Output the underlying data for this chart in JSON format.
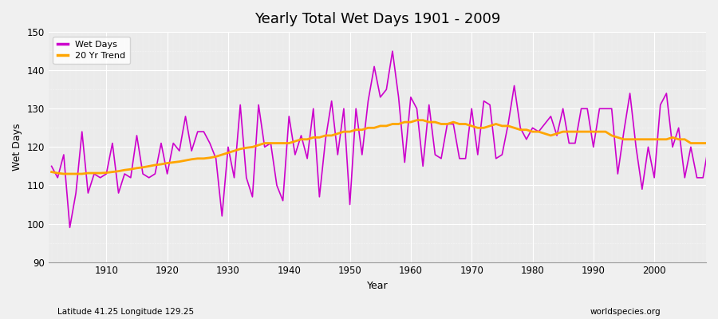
{
  "title": "Yearly Total Wet Days 1901 - 2009",
  "xlabel": "Year",
  "ylabel": "Wet Days",
  "lat_lon_label": "Latitude 41.25 Longitude 129.25",
  "source_label": "worldspecies.org",
  "ylim": [
    90,
    150
  ],
  "yticks": [
    90,
    100,
    110,
    120,
    130,
    140,
    150
  ],
  "bg_color": "#f0f0f0",
  "plot_bg_color": "#ebebeb",
  "line_color": "#cc00cc",
  "trend_color": "#ffa500",
  "years": [
    1901,
    1902,
    1903,
    1904,
    1905,
    1906,
    1907,
    1908,
    1909,
    1910,
    1911,
    1912,
    1913,
    1914,
    1915,
    1916,
    1917,
    1918,
    1919,
    1920,
    1921,
    1922,
    1923,
    1924,
    1925,
    1926,
    1927,
    1928,
    1929,
    1930,
    1931,
    1932,
    1933,
    1934,
    1935,
    1936,
    1937,
    1938,
    1939,
    1940,
    1941,
    1942,
    1943,
    1944,
    1945,
    1946,
    1947,
    1948,
    1949,
    1950,
    1951,
    1952,
    1953,
    1954,
    1955,
    1956,
    1957,
    1958,
    1959,
    1960,
    1961,
    1962,
    1963,
    1964,
    1965,
    1966,
    1967,
    1968,
    1969,
    1970,
    1971,
    1972,
    1973,
    1974,
    1975,
    1976,
    1977,
    1978,
    1979,
    1980,
    1981,
    1982,
    1983,
    1984,
    1985,
    1986,
    1987,
    1988,
    1989,
    1990,
    1991,
    1992,
    1993,
    1994,
    1995,
    1996,
    1997,
    1998,
    1999,
    2000,
    2001,
    2002,
    2003,
    2004,
    2005,
    2006,
    2007,
    2008,
    2009
  ],
  "wet_days": [
    115,
    112,
    118,
    99,
    108,
    124,
    108,
    113,
    112,
    113,
    121,
    108,
    113,
    112,
    123,
    113,
    112,
    113,
    121,
    113,
    121,
    119,
    128,
    119,
    124,
    124,
    121,
    117,
    102,
    120,
    112,
    131,
    112,
    107,
    131,
    120,
    121,
    110,
    106,
    128,
    118,
    123,
    117,
    130,
    107,
    122,
    132,
    118,
    130,
    105,
    130,
    118,
    132,
    141,
    133,
    135,
    145,
    133,
    116,
    133,
    130,
    115,
    131,
    118,
    117,
    126,
    126,
    117,
    117,
    130,
    118,
    132,
    131,
    117,
    118,
    126,
    136,
    125,
    122,
    125,
    124,
    126,
    128,
    123,
    130,
    121,
    121,
    130,
    130,
    120,
    130,
    130,
    130,
    113,
    124,
    134,
    120,
    109,
    120,
    112,
    131,
    134,
    120,
    125,
    112,
    120,
    112,
    112,
    121
  ],
  "trend_years": [
    1901,
    1902,
    1903,
    1904,
    1905,
    1906,
    1907,
    1908,
    1909,
    1910,
    1911,
    1912,
    1913,
    1914,
    1915,
    1916,
    1917,
    1918,
    1919,
    1920,
    1921,
    1922,
    1923,
    1924,
    1925,
    1926,
    1927,
    1928,
    1929,
    1930,
    1931,
    1932,
    1933,
    1934,
    1935,
    1936,
    1937,
    1938,
    1939,
    1940,
    1941,
    1942,
    1943,
    1944,
    1945,
    1946,
    1947,
    1948,
    1949,
    1950,
    1951,
    1952,
    1953,
    1954,
    1955,
    1956,
    1957,
    1958,
    1959,
    1960,
    1961,
    1962,
    1963,
    1964,
    1965,
    1966,
    1967,
    1968,
    1969,
    1970,
    1971,
    1972,
    1973,
    1974,
    1975,
    1976,
    1977,
    1978,
    1979,
    1980,
    1981,
    1982,
    1983,
    1984,
    1985,
    1986,
    1987,
    1988,
    1989,
    1990,
    1991,
    1992,
    1993,
    1994,
    1995,
    1996,
    1997,
    1998,
    1999,
    2000,
    2001,
    2002,
    2003,
    2004,
    2005,
    2006,
    2007,
    2008,
    2009
  ],
  "trend_values": [
    113.5,
    113.2,
    113.0,
    113.0,
    113.0,
    113.0,
    113.2,
    113.2,
    113.2,
    113.3,
    113.5,
    113.7,
    114.0,
    114.2,
    114.5,
    114.7,
    115.0,
    115.3,
    115.5,
    115.8,
    116.0,
    116.2,
    116.5,
    116.8,
    117.0,
    117.0,
    117.2,
    117.5,
    118.0,
    118.5,
    119.0,
    119.5,
    119.8,
    120.0,
    120.5,
    121.0,
    121.0,
    121.0,
    121.0,
    121.0,
    121.5,
    122.0,
    122.0,
    122.5,
    122.5,
    123.0,
    123.0,
    123.5,
    124.0,
    124.0,
    124.5,
    124.5,
    125.0,
    125.0,
    125.5,
    125.5,
    126.0,
    126.0,
    126.5,
    126.5,
    127.0,
    127.0,
    126.5,
    126.5,
    126.0,
    126.0,
    126.5,
    126.0,
    126.0,
    125.5,
    125.0,
    125.0,
    125.5,
    126.0,
    125.5,
    125.5,
    125.0,
    124.5,
    124.5,
    124.0,
    124.0,
    123.5,
    123.0,
    123.5,
    124.0,
    124.0,
    124.0,
    124.0,
    124.0,
    124.0,
    124.0,
    124.0,
    123.0,
    122.5,
    122.0,
    122.0,
    122.0,
    122.0,
    122.0,
    122.0,
    122.0,
    122.0,
    122.5,
    122.0,
    122.0,
    121.0,
    121.0,
    121.0,
    121.0
  ]
}
